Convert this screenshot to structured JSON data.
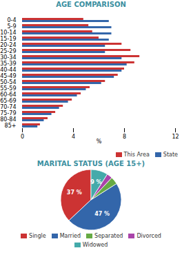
{
  "chart_data": [
    {
      "type": "bar",
      "title": "AGE COMPARISON",
      "orientation": "horizontal",
      "categories": [
        "85+",
        "80-84",
        "75-79",
        "70-74",
        "65-69",
        "60-64",
        "55-59",
        "50-54",
        "45-49",
        "40-44",
        "35-39",
        "30-34",
        "25-29",
        "20-24",
        "15-19",
        "10-14",
        "5-9",
        "0-4"
      ],
      "series": [
        {
          "name": "This Area",
          "color": "#cc3333",
          "values": [
            1.4,
            2.0,
            2.6,
            3.2,
            3.9,
            4.6,
            5.3,
            6.5,
            7.5,
            8.0,
            8.8,
            9.2,
            8.5,
            7.8,
            6.0,
            5.5,
            5.2,
            4.8
          ]
        },
        {
          "name": "State",
          "color": "#3366aa",
          "values": [
            1.2,
            1.7,
            2.3,
            2.9,
            3.6,
            4.3,
            5.0,
            6.2,
            7.2,
            7.8,
            8.2,
            7.8,
            6.5,
            6.5,
            6.8,
            7.0,
            7.0,
            6.8
          ]
        }
      ],
      "xlabel": "%",
      "xlim": [
        0,
        12
      ],
      "xticks": [
        0,
        4,
        8,
        12
      ],
      "legend": "lower right",
      "grid": false
    },
    {
      "type": "pie",
      "title": "MARITAL STATUS (AGE 15+)",
      "categories": [
        "Single",
        "Married",
        "Separated",
        "Divorced",
        "Widowed"
      ],
      "values": [
        37,
        47,
        4,
        3,
        9
      ],
      "colors": [
        "#cc3333",
        "#3366aa",
        "#66aa44",
        "#aa44aa",
        "#44aaaa"
      ],
      "data_labels": true,
      "value_labels": [
        "37 %",
        "47 %",
        null,
        null,
        "9 %"
      ],
      "legend": "lower center"
    }
  ]
}
